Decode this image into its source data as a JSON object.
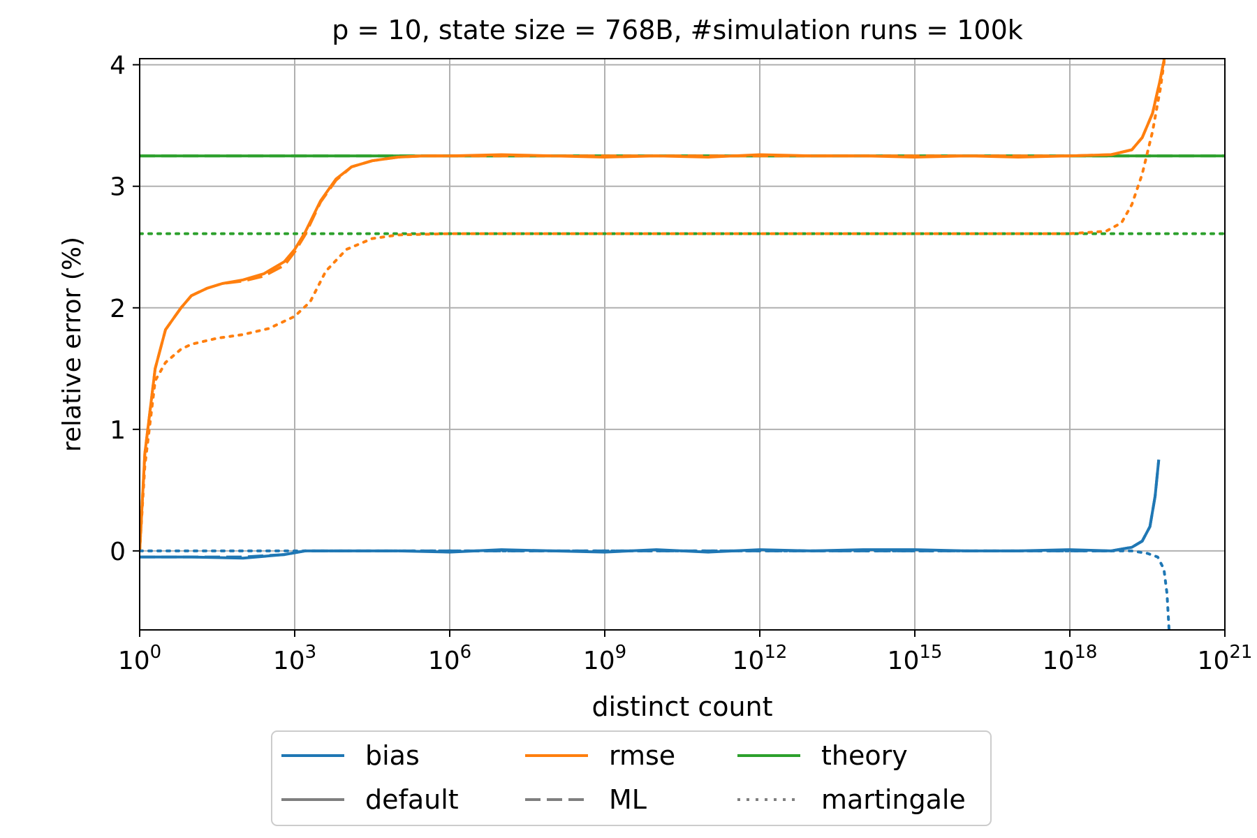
{
  "chart_data": {
    "type": "line",
    "title": "p = 10, state size = 768B, #simulation runs = 100k",
    "xlabel": "distinct count",
    "ylabel": "relative error (%)",
    "xscale": "log10",
    "xlim_exp": [
      0,
      21
    ],
    "ylim": [
      -0.65,
      4.05
    ],
    "grid": true,
    "legend_position": "bottom-outside",
    "x_ticks": [
      {
        "base": "10",
        "exp": "0",
        "value_exp": 0
      },
      {
        "base": "10",
        "exp": "3",
        "value_exp": 3
      },
      {
        "base": "10",
        "exp": "6",
        "value_exp": 6
      },
      {
        "base": "10",
        "exp": "9",
        "value_exp": 9
      },
      {
        "base": "10",
        "exp": "12",
        "value_exp": 12
      },
      {
        "base": "10",
        "exp": "15",
        "value_exp": 15
      },
      {
        "base": "10",
        "exp": "18",
        "value_exp": 18
      },
      {
        "base": "10",
        "exp": "21",
        "value_exp": 21
      }
    ],
    "y_ticks": [
      {
        "label": "0",
        "value": 0
      },
      {
        "label": "1",
        "value": 1
      },
      {
        "label": "2",
        "value": 2
      },
      {
        "label": "3",
        "value": 3
      },
      {
        "label": "4",
        "value": 4
      }
    ],
    "colors": {
      "bias": "#1f77b4",
      "rmse": "#ff7f0e",
      "theory": "#2ca02c",
      "style_key": "#7f7f7f"
    },
    "legend": {
      "color_entries": [
        {
          "label": "bias",
          "color": "#1f77b4"
        },
        {
          "label": "rmse",
          "color": "#ff7f0e"
        },
        {
          "label": "theory",
          "color": "#2ca02c"
        }
      ],
      "style_entries": [
        {
          "label": "default",
          "dash": "solid"
        },
        {
          "label": "ML",
          "dash": "dashed"
        },
        {
          "label": "martingale",
          "dash": "dotted"
        }
      ]
    },
    "series": [
      {
        "name": "theory default",
        "color": "#2ca02c",
        "dash": "solid",
        "x_exp": [
          0,
          21
        ],
        "y": [
          3.25,
          3.25
        ]
      },
      {
        "name": "theory ML",
        "color": "#2ca02c",
        "dash": "dashed",
        "x_exp": [
          0,
          21
        ],
        "y": [
          3.25,
          3.25
        ]
      },
      {
        "name": "theory martingale",
        "color": "#2ca02c",
        "dash": "dotted",
        "x_exp": [
          0,
          21
        ],
        "y": [
          2.61,
          2.61
        ]
      },
      {
        "name": "rmse default",
        "color": "#ff7f0e",
        "dash": "solid",
        "x_exp": [
          0,
          0.1,
          0.3,
          0.5,
          0.8,
          1.0,
          1.3,
          1.6,
          2.0,
          2.4,
          2.8,
          3.0,
          3.2,
          3.5,
          3.8,
          4.1,
          4.5,
          5.0,
          5.5,
          6.0,
          7.0,
          8.0,
          9.0,
          10.0,
          11.0,
          12.0,
          13.0,
          14.0,
          15.0,
          16.0,
          17.0,
          18.0,
          18.8,
          19.2,
          19.4,
          19.6,
          19.75,
          19.85
        ],
        "y": [
          0,
          0.8,
          1.5,
          1.82,
          2.0,
          2.1,
          2.16,
          2.2,
          2.23,
          2.28,
          2.38,
          2.48,
          2.62,
          2.88,
          3.06,
          3.16,
          3.21,
          3.24,
          3.25,
          3.25,
          3.26,
          3.25,
          3.24,
          3.25,
          3.24,
          3.26,
          3.25,
          3.25,
          3.24,
          3.25,
          3.24,
          3.25,
          3.26,
          3.3,
          3.4,
          3.6,
          3.88,
          4.1
        ]
      },
      {
        "name": "rmse ML",
        "color": "#ff7f0e",
        "dash": "dashed",
        "x_exp": [
          0,
          0.1,
          0.3,
          0.5,
          0.8,
          1.0,
          1.3,
          1.6,
          2.0,
          2.4,
          2.8,
          3.0,
          3.2,
          3.5,
          3.8,
          4.1,
          4.5,
          5.0,
          5.5,
          6.0,
          7.0,
          8.0,
          9.0,
          10.0,
          11.0,
          12.0,
          13.0,
          14.0,
          15.0,
          16.0,
          17.0,
          18.0,
          18.8,
          19.2,
          19.4,
          19.6,
          19.75,
          19.85
        ],
        "y": [
          0,
          0.8,
          1.5,
          1.82,
          2.0,
          2.1,
          2.16,
          2.2,
          2.22,
          2.26,
          2.35,
          2.46,
          2.6,
          2.87,
          3.05,
          3.16,
          3.21,
          3.24,
          3.25,
          3.25,
          3.25,
          3.25,
          3.25,
          3.25,
          3.25,
          3.25,
          3.25,
          3.25,
          3.25,
          3.25,
          3.25,
          3.25,
          3.26,
          3.3,
          3.4,
          3.6,
          3.88,
          4.1
        ]
      },
      {
        "name": "rmse martingale",
        "color": "#ff7f0e",
        "dash": "dotted",
        "x_exp": [
          0,
          0.1,
          0.3,
          0.5,
          0.8,
          1.0,
          1.5,
          2.0,
          2.5,
          3.0,
          3.3,
          3.6,
          4.0,
          4.5,
          5.0,
          6.0,
          8.0,
          10.0,
          12.0,
          14.0,
          16.0,
          18.0,
          18.7,
          19.0,
          19.2,
          19.4,
          19.6,
          19.75,
          19.85
        ],
        "y": [
          0,
          0.7,
          1.4,
          1.55,
          1.66,
          1.7,
          1.75,
          1.78,
          1.83,
          1.93,
          2.05,
          2.3,
          2.48,
          2.57,
          2.6,
          2.61,
          2.61,
          2.61,
          2.61,
          2.61,
          2.61,
          2.61,
          2.63,
          2.7,
          2.85,
          3.1,
          3.45,
          3.8,
          4.1
        ]
      },
      {
        "name": "bias default",
        "color": "#1f77b4",
        "dash": "solid",
        "x_exp": [
          0,
          1.0,
          2.0,
          2.8,
          3.2,
          4.0,
          5.0,
          6.0,
          7.0,
          8.0,
          9.0,
          10.0,
          11.0,
          12.0,
          13.0,
          14.0,
          15.0,
          16.0,
          17.0,
          18.0,
          18.8,
          19.2,
          19.4,
          19.55,
          19.65,
          19.72
        ],
        "y": [
          -0.05,
          -0.05,
          -0.06,
          -0.03,
          0.0,
          0.0,
          0.0,
          -0.01,
          0.01,
          0.0,
          -0.01,
          0.01,
          -0.01,
          0.01,
          0.0,
          0.01,
          0.01,
          0.0,
          0.0,
          0.01,
          0.0,
          0.03,
          0.08,
          0.2,
          0.45,
          0.75
        ]
      },
      {
        "name": "bias ML",
        "color": "#1f77b4",
        "dash": "dashed",
        "x_exp": [
          0,
          1.0,
          2.0,
          2.8,
          3.2,
          4.0,
          5.0,
          6.0,
          7.0,
          8.0,
          9.0,
          10.0,
          11.0,
          12.0,
          13.0,
          14.0,
          15.0,
          16.0,
          17.0,
          18.0,
          18.8,
          19.2,
          19.4,
          19.55,
          19.65,
          19.72
        ],
        "y": [
          -0.05,
          -0.05,
          -0.05,
          -0.03,
          0.0,
          0.0,
          0.0,
          0.0,
          0.0,
          0.0,
          0.0,
          0.0,
          0.0,
          0.0,
          0.0,
          0.0,
          0.0,
          0.0,
          0.0,
          0.0,
          0.0,
          0.03,
          0.08,
          0.2,
          0.45,
          0.75
        ]
      },
      {
        "name": "bias martingale",
        "color": "#1f77b4",
        "dash": "dotted",
        "x_exp": [
          0,
          2.0,
          4.0,
          6.0,
          8.0,
          10.0,
          12.0,
          14.0,
          16.0,
          18.0,
          19.2,
          19.5,
          19.7,
          19.82,
          19.88,
          19.92
        ],
        "y": [
          0.0,
          0.0,
          0.0,
          0.0,
          0.0,
          0.0,
          0.0,
          0.0,
          0.0,
          0.0,
          0.0,
          -0.02,
          -0.05,
          -0.15,
          -0.35,
          -0.65
        ]
      }
    ]
  }
}
